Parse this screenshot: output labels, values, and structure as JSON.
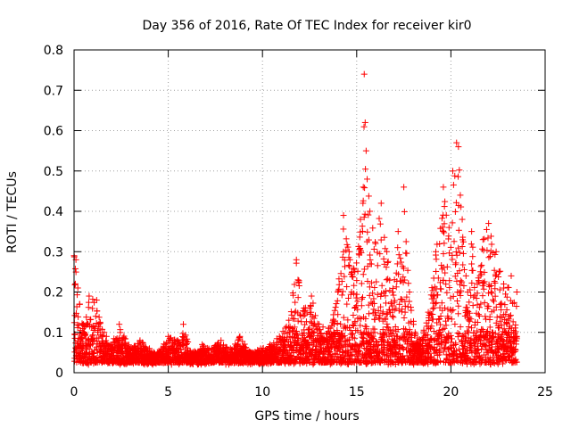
{
  "chart_data": {
    "type": "scatter",
    "title": "Day 356 of 2016, Rate Of TEC Index for receiver kir0",
    "xlabel": "GPS time / hours",
    "ylabel": "ROTI / TECUs",
    "xlim": [
      0,
      25
    ],
    "ylim": [
      0,
      0.8
    ],
    "xticks": [
      0,
      5,
      10,
      15,
      20,
      25
    ],
    "yticks": [
      0,
      0.1,
      0.2,
      0.3,
      0.4,
      0.5,
      0.6,
      0.7,
      0.8
    ],
    "xtick_labels": [
      "0",
      "5",
      "10",
      "15",
      "20",
      "25"
    ],
    "ytick_labels": [
      "0",
      "0.1",
      "0.2",
      "0.3",
      "0.4",
      "0.5",
      "0.6",
      "0.7",
      "0.8"
    ],
    "grid": true,
    "marker": "+",
    "colors": {
      "series": "#ff0000",
      "axis": "#000000",
      "grid": "#a0a0a0",
      "background": "#ffffff"
    },
    "series": [
      {
        "name": "ROTI",
        "x": [
          0.0,
          0.1,
          0.2,
          0.3,
          0.5,
          0.8,
          1.2,
          1.6,
          2.0,
          2.4,
          3.0,
          3.5,
          4.0,
          4.5,
          5.0,
          5.5,
          5.8,
          6.2,
          6.8,
          7.3,
          7.8,
          8.3,
          8.8,
          9.4,
          9.9,
          10.4,
          10.9,
          11.4,
          11.8,
          12.2,
          12.6,
          13.0,
          13.5,
          14.0,
          14.3,
          14.6,
          14.9,
          15.2,
          15.35,
          15.4,
          15.45,
          15.5,
          15.7,
          16.0,
          16.3,
          16.6,
          16.9,
          17.2,
          17.5,
          17.8,
          18.1,
          18.4,
          18.8,
          19.2,
          19.6,
          19.9,
          20.1,
          20.3,
          20.4,
          20.5,
          20.6,
          20.8,
          21.1,
          21.4,
          21.7,
          22.0,
          22.4,
          22.8,
          23.2,
          23.5
        ],
        "y": [
          0.29,
          0.28,
          0.21,
          0.17,
          0.12,
          0.19,
          0.18,
          0.1,
          0.07,
          0.12,
          0.06,
          0.08,
          0.06,
          0.05,
          0.09,
          0.08,
          0.12,
          0.05,
          0.07,
          0.06,
          0.08,
          0.06,
          0.09,
          0.05,
          0.06,
          0.07,
          0.09,
          0.13,
          0.28,
          0.16,
          0.19,
          0.12,
          0.11,
          0.2,
          0.39,
          0.3,
          0.25,
          0.38,
          0.46,
          0.74,
          0.62,
          0.55,
          0.4,
          0.32,
          0.42,
          0.3,
          0.2,
          0.35,
          0.46,
          0.2,
          0.1,
          0.08,
          0.15,
          0.3,
          0.46,
          0.36,
          0.5,
          0.57,
          0.56,
          0.44,
          0.38,
          0.24,
          0.35,
          0.22,
          0.33,
          0.37,
          0.3,
          0.22,
          0.24,
          0.2
        ]
      }
    ]
  }
}
